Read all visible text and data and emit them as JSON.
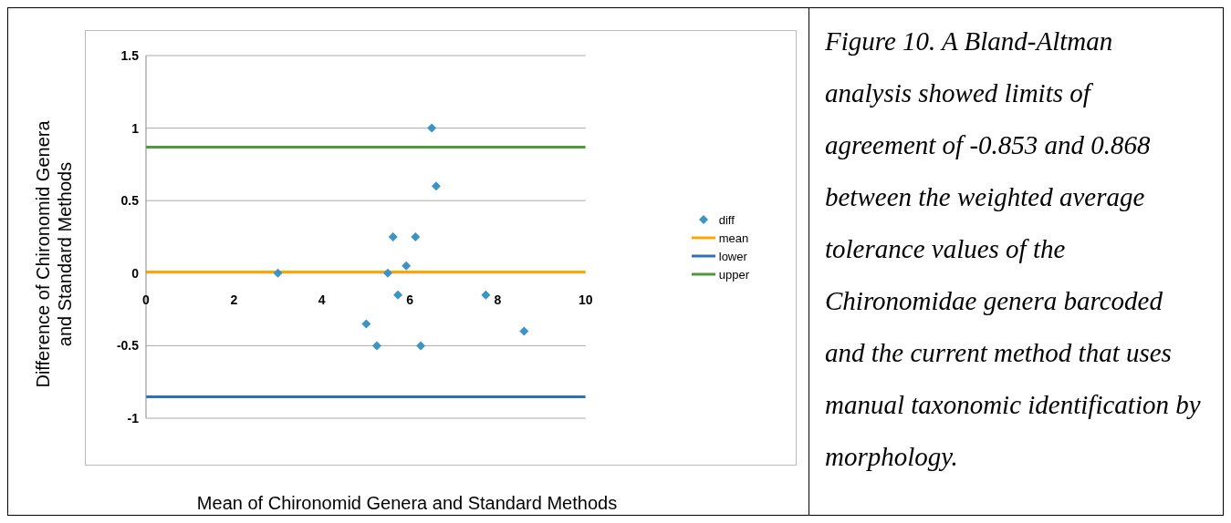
{
  "chart_data": {
    "type": "scatter",
    "xlabel": "Mean of Chironomid Genera and Standard Methods",
    "ylabel": "Difference of Chironomid Genera\nand Standard Methods",
    "xlim": [
      0,
      10
    ],
    "xticks": [
      0,
      2,
      4,
      6,
      8,
      10
    ],
    "ylim": [
      -1,
      1.5
    ],
    "yticks": [
      -1,
      -0.5,
      0,
      0.5,
      1,
      1.5
    ],
    "grid": "y",
    "legend": "right",
    "series": [
      {
        "name": "diff",
        "marker": "diamond",
        "color": "#3a94c6",
        "x": [
          3.0,
          6.5,
          6.6,
          5.62,
          6.13,
          5.92,
          5.5,
          5.73,
          7.73,
          5.01,
          5.25,
          6.25,
          8.6
        ],
        "values": [
          0,
          1,
          0.6,
          0.25,
          0.25,
          0.05,
          0,
          -0.15,
          -0.15,
          -0.35,
          -0.5,
          -0.5,
          -0.4
        ]
      },
      {
        "name": "mean",
        "type": "line",
        "marker": "none",
        "color": "#ffa500",
        "x": [
          0,
          10
        ],
        "values": [
          0.008,
          0.008
        ]
      },
      {
        "name": "lower",
        "type": "line",
        "marker": "none",
        "color": "#2f6fb8",
        "x": [
          0,
          10
        ],
        "values": [
          -0.853,
          -0.853
        ]
      },
      {
        "name": "upper",
        "type": "line",
        "marker": "none",
        "color": "#4e9a3a",
        "x": [
          0,
          10
        ],
        "values": [
          0.868,
          0.868
        ]
      }
    ],
    "annotations": [
      "Figure 10. A Bland-Altman analysis showed limits of agreement of -0.853 and 0.868 between the weighted average tolerance values of the Chironomidae genera barcoded and the current method that uses manual taxonomic identification by morphology."
    ]
  }
}
